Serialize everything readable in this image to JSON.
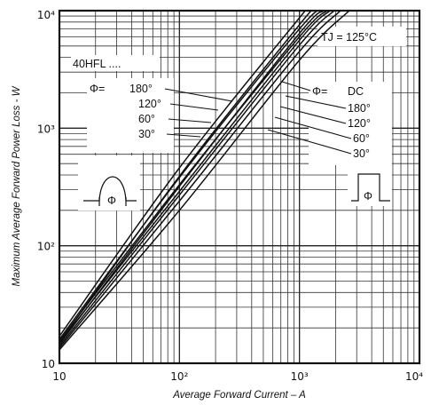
{
  "chart_data": {
    "type": "line",
    "x_scale": "log",
    "y_scale": "log",
    "xlim": [
      10,
      10000
    ],
    "ylim": [
      10,
      10000
    ],
    "xlabel": "Average Forward Current – A",
    "ylabel": "Maximum Average Forward Power Loss - W",
    "x_ticks": [
      {
        "value": 10,
        "label": "10"
      },
      {
        "value": 100,
        "label": "10²"
      },
      {
        "value": 1000,
        "label": "10³"
      },
      {
        "value": 10000,
        "label": "10⁴"
      }
    ],
    "y_ticks": [
      {
        "value": 10,
        "label": "10"
      },
      {
        "value": 100,
        "label": "10²"
      },
      {
        "value": 1000,
        "label": "10³"
      },
      {
        "value": 10000,
        "label": "10⁴"
      }
    ],
    "grid": true,
    "annotations": {
      "part": "40HFL ....",
      "temperature": "TJ = 125°C",
      "sine_label": "Φ=",
      "sine_angles": [
        "180°",
        "120°",
        "60°",
        "30°"
      ],
      "rect_label": "Φ=",
      "rect_angles": [
        "DC",
        "180°",
        "120°",
        "60°",
        "30°"
      ],
      "inset_symbol": "Φ"
    },
    "series": [
      {
        "values": [
          [
            10,
            15
          ],
          [
            100,
            290
          ],
          [
            1000,
            5600
          ],
          [
            1800,
            10000
          ]
        ]
      },
      {
        "values": [
          [
            10,
            15.5
          ],
          [
            100,
            330
          ],
          [
            1000,
            6000
          ],
          [
            1700,
            10000
          ]
        ]
      },
      {
        "values": [
          [
            10,
            16
          ],
          [
            100,
            380
          ],
          [
            1000,
            7000
          ],
          [
            1530,
            10000
          ]
        ]
      },
      {
        "values": [
          [
            10,
            17
          ],
          [
            100,
            460
          ],
          [
            1000,
            8700
          ],
          [
            1150,
            10000
          ]
        ]
      },
      {
        "values": [
          [
            10,
            13
          ],
          [
            100,
            200
          ],
          [
            1000,
            3800
          ],
          [
            2600,
            10000
          ]
        ]
      },
      {
        "values": [
          [
            10,
            13.5
          ],
          [
            100,
            240
          ],
          [
            1000,
            4500
          ],
          [
            2200,
            10000
          ]
        ]
      },
      {
        "values": [
          [
            10,
            14
          ],
          [
            100,
            270
          ],
          [
            1000,
            5100
          ],
          [
            1950,
            10000
          ]
        ]
      },
      {
        "values": [
          [
            10,
            14.5
          ],
          [
            100,
            320
          ],
          [
            1000,
            6400
          ],
          [
            1600,
            10000
          ]
        ]
      },
      {
        "values": [
          [
            10,
            15
          ],
          [
            100,
            390
          ],
          [
            1000,
            7600
          ],
          [
            1300,
            10000
          ]
        ]
      }
    ]
  }
}
